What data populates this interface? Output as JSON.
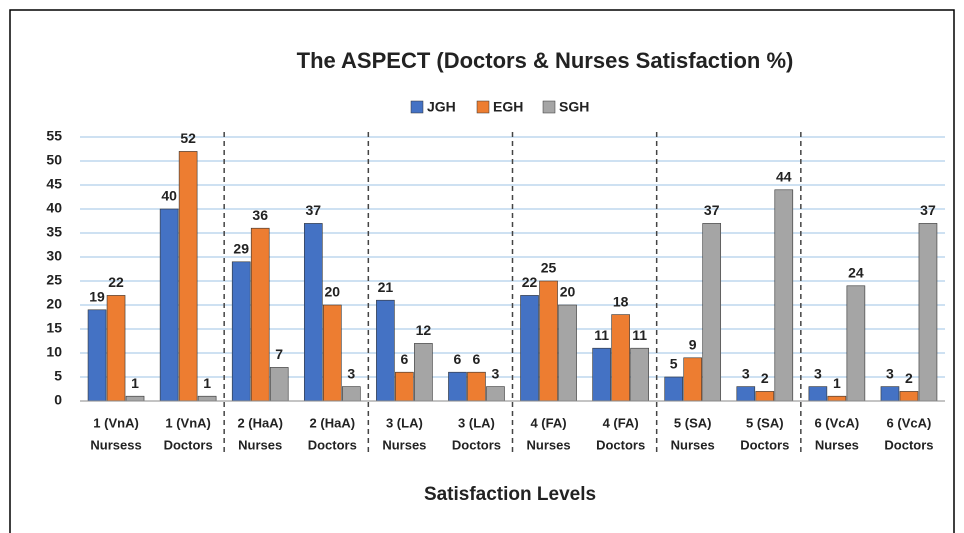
{
  "chart_data": {
    "type": "bar",
    "title": "The ASPECT (Doctors & Nurses Satisfaction %)",
    "x_label": "Satisfaction Levels",
    "categories": [
      [
        "1 (VnA)",
        "Nursess"
      ],
      [
        "1 (VnA)",
        "Doctors"
      ],
      [
        "2 (HaA)",
        "Nurses"
      ],
      [
        "2 (HaA)",
        "Doctors"
      ],
      [
        "3 (LA)",
        "Nurses"
      ],
      [
        "3 (LA)",
        "Doctors"
      ],
      [
        "4 (FA)",
        "Nurses"
      ],
      [
        "4 (FA)",
        "Doctors"
      ],
      [
        "5 (SA)",
        "Nurses"
      ],
      [
        "5 (SA)",
        "Doctors"
      ],
      [
        "6 (VcA)",
        "Nurses"
      ],
      [
        "6 (VcA)",
        "Doctors"
      ]
    ],
    "series": [
      {
        "name": "JGH",
        "color": "#4472c4",
        "values": [
          19,
          40,
          29,
          37,
          21,
          6,
          22,
          11,
          5,
          3,
          3,
          3
        ]
      },
      {
        "name": "EGH",
        "color": "#ed7d31",
        "values": [
          22,
          52,
          36,
          20,
          6,
          6,
          25,
          18,
          9,
          2,
          1,
          2
        ]
      },
      {
        "name": "SGH",
        "color": "#a5a5a5",
        "values": [
          1,
          1,
          7,
          3,
          12,
          3,
          20,
          11,
          37,
          44,
          24,
          37
        ]
      }
    ],
    "ylim": [
      0,
      55
    ],
    "yticks": [
      0,
      5,
      10,
      15,
      20,
      25,
      30,
      35,
      40,
      45,
      50,
      55
    ],
    "grid": true,
    "legend": "top"
  }
}
